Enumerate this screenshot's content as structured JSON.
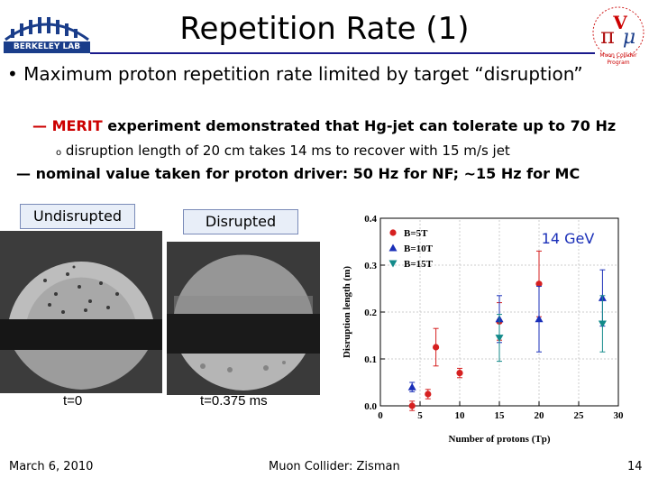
{
  "header": {
    "title": "Repetition Rate (1)",
    "berkeley_lab": "BERKELEY LAB",
    "muon_logo_ring": "Muon Collider Program"
  },
  "body": {
    "bullet_marker": "•",
    "bullet": "Maximum proton repetition rate limited by target “disruption”",
    "dash1_marker": "—",
    "dash1_keyword": "MERIT",
    "dash1_text": " experiment demonstrated that Hg-jet can tolerate up to 70 Hz",
    "dash2_marker": "o",
    "dash2_text": "disruption length of 20 cm takes 14 ms to recover with 15 m/s jet",
    "dash3_marker": "—",
    "dash3_text": "nominal value taken for proton driver: 50 Hz for NF; ~15 Hz for MC"
  },
  "images": {
    "undisrupted_label": "Undisrupted",
    "disrupted_label": "Disrupted",
    "t0_label": "t=0",
    "t1_label": "t=0.375 ms"
  },
  "chart_data": {
    "type": "scatter",
    "annotation": "14 GeV",
    "xlabel": "Number of protons (Tp)",
    "ylabel": "Disruption length (m)",
    "xlim": [
      0,
      30
    ],
    "ylim": [
      0,
      0.4
    ],
    "xticks": [
      0,
      5,
      10,
      15,
      20,
      25,
      30
    ],
    "yticks": [
      0.0,
      0.1,
      0.2,
      0.3,
      0.4
    ],
    "series": [
      {
        "name": "B=5T",
        "color": "#d62020",
        "marker": "circle",
        "points": [
          {
            "x": 4,
            "y": 0.0,
            "err": 0.01
          },
          {
            "x": 6,
            "y": 0.025,
            "err": 0.01
          },
          {
            "x": 7,
            "y": 0.125,
            "err": 0.04
          },
          {
            "x": 10,
            "y": 0.07,
            "err": 0.01
          },
          {
            "x": 15,
            "y": 0.18,
            "err": 0.04
          },
          {
            "x": 20,
            "y": 0.26,
            "err": 0.07
          }
        ]
      },
      {
        "name": "B=10T",
        "color": "#1a2fb8",
        "marker": "triangle-up",
        "points": [
          {
            "x": 4,
            "y": 0.04,
            "err": 0.01
          },
          {
            "x": 15,
            "y": 0.185,
            "err": 0.05
          },
          {
            "x": 20,
            "y": 0.185,
            "err": 0.07
          },
          {
            "x": 28,
            "y": 0.23,
            "err": 0.06
          }
        ]
      },
      {
        "name": "B=15T",
        "color": "#138a8a",
        "marker": "triangle-down",
        "points": [
          {
            "x": 15,
            "y": 0.145,
            "err": 0.05
          },
          {
            "x": 28,
            "y": 0.175,
            "err": 0.06
          }
        ]
      }
    ]
  },
  "footer": {
    "date": "March 6, 2010",
    "event": "Muon Collider: Zisman",
    "page": "14"
  }
}
